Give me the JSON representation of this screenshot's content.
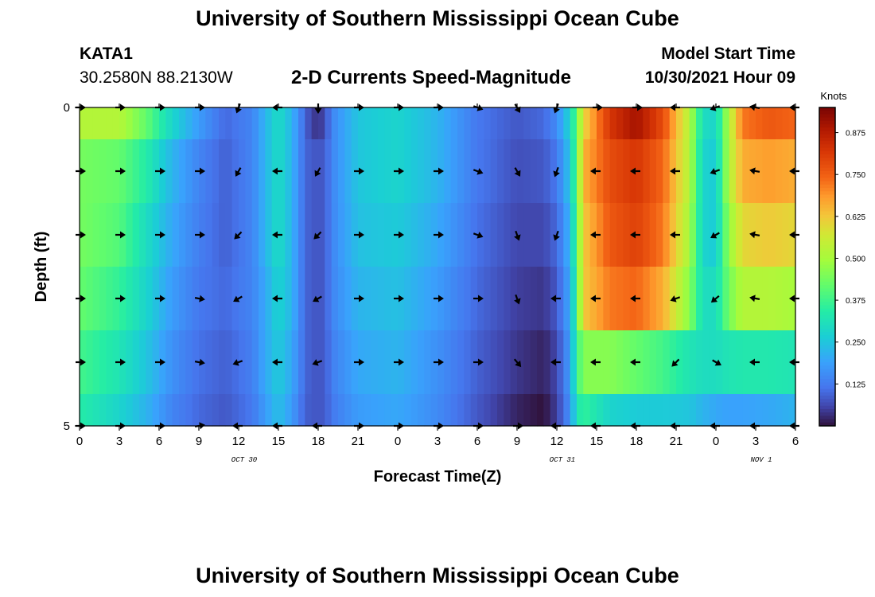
{
  "header": {
    "title": "University of Southern Mississippi Ocean Cube",
    "station_id": "KATA1",
    "station_location": "30.2580N  88.2130W",
    "subtitle": "2-D Currents Speed-Magnitude",
    "model_label": "Model Start Time",
    "model_time": "10/30/2021 Hour 09"
  },
  "footer": {
    "title": "University of Southern Mississippi Ocean Cube"
  },
  "chart_data": {
    "type": "heatmap",
    "title": "2-D Currents Speed-Magnitude",
    "xlabel": "Forecast Time(Z)",
    "ylabel": "Depth (ft)",
    "x_hours": [
      0,
      3,
      6,
      9,
      12,
      15,
      18,
      21,
      24,
      27,
      30,
      33,
      36,
      39,
      42,
      45,
      48,
      51,
      54
    ],
    "x_tick_labels": [
      "0",
      "3",
      "6",
      "9",
      "12",
      "15",
      "18",
      "21",
      "0",
      "3",
      "6",
      "9",
      "12",
      "15",
      "18",
      "21",
      "0",
      "3",
      "6"
    ],
    "date_labels": [
      {
        "hour": 12,
        "text": "OCT 30"
      },
      {
        "hour": 36,
        "text": "OCT 31"
      },
      {
        "hour": 51,
        "text": "NOV 1"
      }
    ],
    "xlim": [
      0,
      54
    ],
    "ylim": [
      5,
      0
    ],
    "y_tick_labels": [
      {
        "value": 0,
        "text": "0"
      },
      {
        "value": 5,
        "text": "5"
      }
    ],
    "depth_levels": [
      0,
      1,
      2,
      3,
      4,
      5
    ],
    "colorbar": {
      "label": "Knots",
      "range": [
        0.0,
        0.95
      ],
      "ticks": [
        0.125,
        0.25,
        0.375,
        0.5,
        0.625,
        0.75,
        0.875
      ],
      "tick_labels": [
        "0.125",
        "0.250",
        "0.375",
        "0.500",
        "0.625",
        "0.750",
        "0.875"
      ]
    },
    "speed_keyframes": {
      "hours": [
        0,
        3,
        5,
        7,
        9,
        11,
        13,
        14,
        15,
        16,
        17,
        17.5,
        18,
        18.5,
        19,
        21,
        24,
        27,
        30,
        33,
        35,
        36,
        37,
        37.5,
        38,
        40,
        42,
        44,
        46,
        47,
        48,
        49,
        50,
        52,
        54
      ],
      "rows": [
        [
          0.52,
          0.52,
          0.42,
          0.28,
          0.18,
          0.1,
          0.14,
          0.22,
          0.3,
          0.22,
          0.1,
          0.05,
          0.04,
          0.06,
          0.14,
          0.25,
          0.28,
          0.22,
          0.12,
          0.08,
          0.1,
          0.15,
          0.28,
          0.42,
          0.6,
          0.82,
          0.9,
          0.78,
          0.52,
          0.3,
          0.28,
          0.52,
          0.72,
          0.76,
          0.74
        ],
        [
          0.44,
          0.42,
          0.34,
          0.22,
          0.14,
          0.09,
          0.14,
          0.22,
          0.3,
          0.22,
          0.1,
          0.08,
          0.08,
          0.08,
          0.14,
          0.25,
          0.28,
          0.22,
          0.12,
          0.07,
          0.08,
          0.12,
          0.25,
          0.42,
          0.65,
          0.78,
          0.82,
          0.74,
          0.52,
          0.28,
          0.26,
          0.52,
          0.66,
          0.68,
          0.66
        ],
        [
          0.44,
          0.4,
          0.3,
          0.2,
          0.13,
          0.09,
          0.14,
          0.22,
          0.3,
          0.22,
          0.1,
          0.08,
          0.08,
          0.08,
          0.14,
          0.24,
          0.26,
          0.2,
          0.11,
          0.06,
          0.06,
          0.1,
          0.22,
          0.4,
          0.62,
          0.76,
          0.8,
          0.72,
          0.5,
          0.28,
          0.26,
          0.48,
          0.6,
          0.62,
          0.6
        ],
        [
          0.42,
          0.36,
          0.28,
          0.18,
          0.12,
          0.1,
          0.14,
          0.2,
          0.28,
          0.22,
          0.1,
          0.08,
          0.08,
          0.08,
          0.14,
          0.22,
          0.24,
          0.18,
          0.1,
          0.05,
          0.04,
          0.08,
          0.2,
          0.38,
          0.62,
          0.72,
          0.74,
          0.66,
          0.46,
          0.3,
          0.3,
          0.44,
          0.52,
          0.52,
          0.5
        ],
        [
          0.38,
          0.32,
          0.25,
          0.16,
          0.11,
          0.09,
          0.13,
          0.2,
          0.26,
          0.2,
          0.1,
          0.08,
          0.08,
          0.08,
          0.13,
          0.2,
          0.22,
          0.16,
          0.09,
          0.04,
          0.02,
          0.06,
          0.18,
          0.36,
          0.46,
          0.46,
          0.42,
          0.38,
          0.32,
          0.3,
          0.3,
          0.32,
          0.33,
          0.33,
          0.32
        ],
        [
          0.34,
          0.28,
          0.22,
          0.14,
          0.1,
          0.08,
          0.12,
          0.18,
          0.24,
          0.18,
          0.09,
          0.08,
          0.08,
          0.08,
          0.12,
          0.18,
          0.2,
          0.15,
          0.08,
          0.02,
          0.0,
          0.05,
          0.16,
          0.32,
          0.36,
          0.28,
          0.26,
          0.26,
          0.25,
          0.22,
          0.2,
          0.19,
          0.19,
          0.2,
          0.22
        ]
      ]
    },
    "arrow_hours": [
      0,
      3,
      6,
      9,
      12,
      15,
      18,
      21,
      24,
      27,
      30,
      33,
      36,
      39,
      42,
      45,
      48,
      51,
      54
    ],
    "arrow_direction_deg_by_row": [
      [
        90,
        90,
        90,
        90,
        200,
        270,
        180,
        90,
        90,
        90,
        110,
        150,
        200,
        90,
        90,
        270,
        250,
        280,
        270
      ],
      [
        90,
        90,
        90,
        90,
        210,
        270,
        210,
        90,
        90,
        90,
        110,
        150,
        200,
        270,
        270,
        270,
        250,
        280,
        270
      ],
      [
        90,
        90,
        90,
        90,
        225,
        270,
        225,
        90,
        90,
        90,
        110,
        160,
        200,
        270,
        270,
        270,
        240,
        280,
        270
      ],
      [
        90,
        90,
        90,
        100,
        240,
        270,
        240,
        90,
        90,
        90,
        90,
        160,
        270,
        270,
        270,
        250,
        230,
        280,
        270
      ],
      [
        90,
        90,
        90,
        100,
        250,
        270,
        250,
        90,
        90,
        90,
        90,
        140,
        270,
        270,
        270,
        225,
        120,
        270,
        270
      ],
      [
        90,
        90,
        90,
        80,
        270,
        270,
        270,
        90,
        90,
        90,
        90,
        90,
        270,
        270,
        270,
        270,
        270,
        270,
        270
      ]
    ]
  }
}
